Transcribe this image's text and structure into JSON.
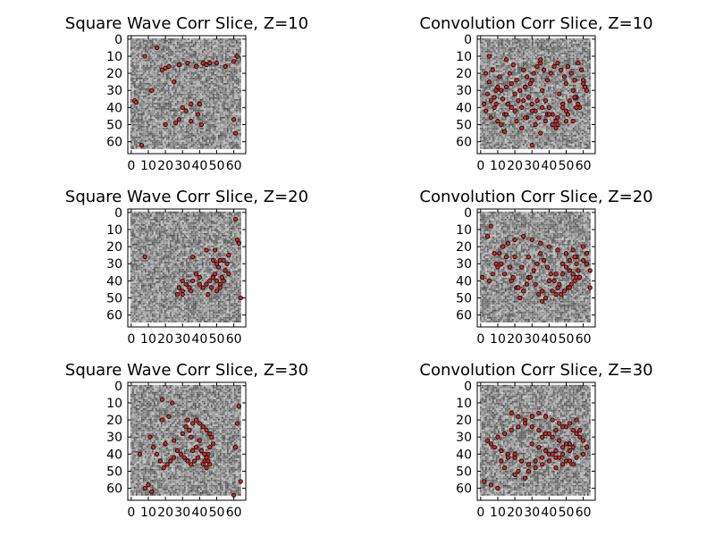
{
  "figure": {
    "background": "#ffffff",
    "point_fill": "#d62728",
    "point_edge": "#000000",
    "image_colormap": "gray"
  },
  "chart_data": [
    {
      "type": "scatter",
      "title": "Square Wave Corr Slice, Z=10",
      "image": "grayscale noise slice",
      "xlim": [
        -2,
        67
      ],
      "ylim": [
        67,
        -2
      ],
      "xticks": [
        0,
        10,
        20,
        30,
        40,
        50,
        60
      ],
      "xtick_labels": [
        "0",
        "10",
        "20",
        "30",
        "40",
        "50",
        "60"
      ],
      "yticks": [
        0,
        10,
        20,
        30,
        40,
        50,
        60
      ],
      "ytick_labels": [
        "0",
        "10",
        "20",
        "30",
        "40",
        "50",
        "60"
      ],
      "x": [
        15,
        8,
        2,
        3,
        18,
        20,
        22,
        28,
        33,
        38,
        42,
        44,
        46,
        50,
        60,
        62,
        55,
        30,
        32,
        35,
        40,
        39,
        35,
        41,
        60,
        61,
        6,
        12,
        25,
        28,
        20,
        26
      ],
      "y": [
        5,
        10,
        36,
        37,
        18,
        17,
        16,
        15,
        14,
        16,
        14,
        15,
        14,
        14,
        13,
        10,
        16,
        40,
        42,
        38,
        38,
        44,
        48,
        50,
        47,
        55,
        62,
        30,
        25,
        47,
        50,
        49
      ]
    },
    {
      "type": "scatter",
      "title": "Convolution Corr Slice, Z=10",
      "image": "grayscale noise slice",
      "xlim": [
        -2,
        67
      ],
      "ylim": [
        67,
        -2
      ],
      "xticks": [
        0,
        10,
        20,
        30,
        40,
        50,
        60
      ],
      "xtick_labels": [
        "0",
        "10",
        "20",
        "30",
        "40",
        "50",
        "60"
      ],
      "yticks": [
        0,
        10,
        20,
        30,
        40,
        50,
        60
      ],
      "ytick_labels": [
        "0",
        "10",
        "20",
        "30",
        "40",
        "50",
        "60"
      ],
      "x": [
        3,
        5,
        7,
        9,
        11,
        13,
        15,
        17,
        19,
        21,
        23,
        25,
        27,
        29,
        31,
        33,
        35,
        37,
        39,
        41,
        43,
        45,
        47,
        49,
        51,
        53,
        55,
        57,
        59,
        61,
        4,
        6,
        8,
        10,
        12,
        14,
        16,
        18,
        20,
        22,
        24,
        26,
        28,
        30,
        32,
        34,
        36,
        38,
        40,
        42,
        44,
        46,
        48,
        50,
        52,
        54,
        56,
        58,
        60,
        62,
        3,
        6,
        9,
        12,
        15,
        18,
        21,
        24,
        27,
        30,
        33,
        36,
        39,
        42,
        45,
        48,
        51,
        54,
        57,
        60,
        5,
        10,
        15,
        20,
        25,
        30,
        35,
        40,
        45,
        50,
        55,
        2,
        8,
        14,
        26,
        32,
        38,
        44,
        50,
        56,
        30,
        35
      ],
      "y": [
        20,
        25,
        18,
        30,
        22,
        35,
        28,
        20,
        15,
        24,
        30,
        18,
        22,
        26,
        20,
        16,
        14,
        18,
        24,
        20,
        16,
        14,
        18,
        22,
        16,
        20,
        24,
        14,
        18,
        28,
        32,
        36,
        40,
        28,
        30,
        44,
        38,
        26,
        32,
        36,
        40,
        28,
        34,
        38,
        42,
        46,
        30,
        36,
        40,
        44,
        48,
        32,
        38,
        42,
        36,
        30,
        34,
        40,
        26,
        30,
        42,
        46,
        38,
        50,
        44,
        40,
        48,
        52,
        46,
        42,
        36,
        40,
        44,
        50,
        46,
        40,
        44,
        48,
        38,
        24,
        10,
        48,
        12,
        42,
        36,
        24,
        12,
        44,
        50,
        26,
        34,
        38,
        34,
        54,
        46,
        50,
        48,
        52,
        48,
        40,
        62,
        55
      ]
    },
    {
      "type": "scatter",
      "title": "Square Wave Corr Slice, Z=20",
      "image": "grayscale noise slice",
      "xlim": [
        -2,
        67
      ],
      "ylim": [
        67,
        -2
      ],
      "xticks": [
        0,
        10,
        20,
        30,
        40,
        50,
        60
      ],
      "xtick_labels": [
        "0",
        "10",
        "20",
        "30",
        "40",
        "50",
        "60"
      ],
      "yticks": [
        0,
        10,
        20,
        30,
        40,
        50,
        60
      ],
      "ytick_labels": [
        "0",
        "10",
        "20",
        "30",
        "40",
        "50",
        "60"
      ],
      "x": [
        63,
        62,
        57,
        49,
        44,
        48,
        50,
        52,
        54,
        56,
        55,
        57,
        51,
        53,
        49,
        50,
        52,
        48,
        47,
        54,
        50,
        52,
        46,
        44,
        40,
        38,
        36,
        34,
        32,
        30,
        28,
        27,
        30,
        35,
        40,
        36,
        42,
        45,
        30,
        8,
        64,
        61
      ],
      "y": [
        18,
        16,
        25,
        22,
        22,
        28,
        30,
        28,
        28,
        30,
        34,
        36,
        32,
        38,
        36,
        40,
        42,
        38,
        44,
        40,
        46,
        44,
        40,
        42,
        38,
        36,
        40,
        44,
        42,
        46,
        44,
        48,
        48,
        46,
        42,
        26,
        44,
        48,
        40,
        26,
        50,
        4
      ]
    },
    {
      "type": "scatter",
      "title": "Convolution Corr Slice, Z=20",
      "image": "grayscale noise slice",
      "xlim": [
        -2,
        67
      ],
      "ylim": [
        67,
        -2
      ],
      "xticks": [
        0,
        10,
        20,
        30,
        40,
        50,
        60
      ],
      "xtick_labels": [
        "0",
        "10",
        "20",
        "30",
        "40",
        "50",
        "60"
      ],
      "yticks": [
        0,
        10,
        20,
        30,
        40,
        50,
        60
      ],
      "ytick_labels": [
        "0",
        "10",
        "20",
        "30",
        "40",
        "50",
        "60"
      ],
      "x": [
        6,
        1,
        4,
        8,
        12,
        16,
        20,
        24,
        28,
        32,
        36,
        40,
        44,
        48,
        52,
        56,
        60,
        50,
        52,
        54,
        56,
        55,
        53,
        51,
        49,
        47,
        45,
        43,
        41,
        39,
        37,
        35,
        33,
        31,
        29,
        27,
        25,
        23,
        21,
        19,
        17,
        15,
        13,
        11,
        9,
        7,
        5,
        20,
        25,
        30,
        35,
        40,
        45,
        50,
        55,
        60,
        62,
        64,
        58,
        46,
        42,
        38,
        34,
        22,
        18,
        14,
        10,
        28,
        36,
        44,
        52,
        48,
        56,
        54,
        62,
        64,
        57
      ],
      "y": [
        8,
        38,
        14,
        24,
        30,
        18,
        26,
        32,
        38,
        42,
        46,
        40,
        36,
        30,
        28,
        26,
        20,
        32,
        34,
        36,
        38,
        40,
        42,
        44,
        46,
        48,
        44,
        40,
        36,
        32,
        28,
        24,
        30,
        34,
        38,
        42,
        46,
        50,
        44,
        38,
        32,
        26,
        20,
        24,
        30,
        36,
        40,
        16,
        14,
        16,
        18,
        20,
        22,
        24,
        26,
        28,
        30,
        34,
        38,
        42,
        46,
        50,
        48,
        44,
        40,
        36,
        32,
        26,
        52,
        48,
        44,
        36,
        30,
        22,
        24,
        44,
        34
      ]
    },
    {
      "type": "scatter",
      "title": "Square Wave Corr Slice, Z=30",
      "image": "grayscale noise slice",
      "xlim": [
        -2,
        67
      ],
      "ylim": [
        67,
        -2
      ],
      "xticks": [
        0,
        10,
        20,
        30,
        40,
        50,
        60
      ],
      "xtick_labels": [
        "0",
        "10",
        "20",
        "30",
        "40",
        "50",
        "60"
      ],
      "yticks": [
        0,
        10,
        20,
        30,
        40,
        50,
        60
      ],
      "ytick_labels": [
        "0",
        "10",
        "20",
        "30",
        "40",
        "50",
        "60"
      ],
      "x": [
        33,
        36,
        38,
        40,
        42,
        44,
        46,
        47,
        48,
        46,
        45,
        44,
        43,
        42,
        44,
        46,
        45,
        43,
        41,
        39,
        37,
        35,
        33,
        31,
        29,
        27,
        25,
        23,
        21,
        19,
        17,
        15,
        13,
        11,
        20,
        25,
        30,
        35,
        40,
        38,
        36,
        34,
        32,
        22,
        18,
        12,
        10,
        8,
        5,
        63,
        62,
        61,
        64,
        60,
        18,
        24
      ],
      "y": [
        20,
        22,
        20,
        22,
        24,
        26,
        28,
        30,
        34,
        36,
        40,
        42,
        44,
        46,
        48,
        46,
        44,
        40,
        38,
        42,
        44,
        46,
        44,
        42,
        40,
        38,
        42,
        44,
        46,
        48,
        44,
        40,
        36,
        30,
        34,
        32,
        28,
        30,
        32,
        36,
        38,
        26,
        24,
        18,
        20,
        62,
        58,
        60,
        40,
        12,
        22,
        36,
        56,
        64,
        8,
        10
      ]
    },
    {
      "type": "scatter",
      "title": "Convolution Corr Slice, Z=30",
      "image": "grayscale noise slice",
      "xlim": [
        -2,
        67
      ],
      "ylim": [
        67,
        -2
      ],
      "xticks": [
        0,
        10,
        20,
        30,
        40,
        50,
        60
      ],
      "xtick_labels": [
        "0",
        "10",
        "20",
        "30",
        "40",
        "50",
        "60"
      ],
      "yticks": [
        0,
        10,
        20,
        30,
        40,
        50,
        60
      ],
      "ytick_labels": [
        "0",
        "10",
        "20",
        "30",
        "40",
        "50",
        "60"
      ],
      "x": [
        18,
        22,
        26,
        30,
        34,
        38,
        42,
        46,
        50,
        54,
        56,
        58,
        60,
        52,
        48,
        44,
        40,
        36,
        32,
        28,
        24,
        20,
        16,
        12,
        8,
        6,
        4,
        10,
        14,
        18,
        22,
        26,
        30,
        34,
        38,
        42,
        46,
        50,
        54,
        52,
        48,
        44,
        40,
        36,
        32,
        28,
        24,
        20,
        16,
        12,
        30,
        34,
        38,
        42,
        46,
        50,
        54,
        44,
        48,
        52,
        56,
        60,
        36,
        40,
        44,
        48,
        52,
        28,
        20,
        14,
        2,
        6,
        10,
        22,
        26,
        60,
        62,
        58,
        56
      ],
      "y": [
        16,
        18,
        20,
        18,
        16,
        18,
        20,
        22,
        24,
        26,
        28,
        30,
        32,
        34,
        36,
        38,
        40,
        42,
        44,
        46,
        44,
        42,
        40,
        38,
        36,
        34,
        32,
        30,
        28,
        26,
        24,
        22,
        24,
        26,
        28,
        30,
        32,
        34,
        36,
        38,
        40,
        42,
        44,
        46,
        48,
        46,
        44,
        40,
        42,
        44,
        34,
        36,
        38,
        40,
        42,
        44,
        46,
        48,
        46,
        44,
        42,
        40,
        30,
        28,
        26,
        24,
        22,
        50,
        52,
        48,
        56,
        58,
        60,
        50,
        54,
        40,
        36,
        26,
        20
      ]
    }
  ]
}
